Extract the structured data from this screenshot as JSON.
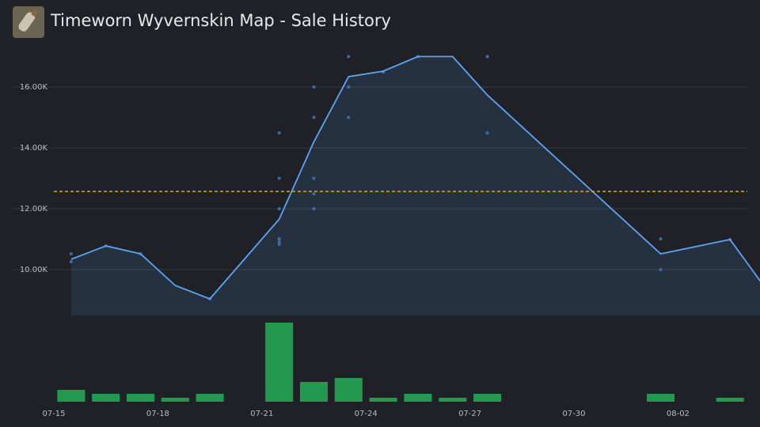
{
  "chart_data": {
    "type": "line",
    "title": "Timeworn Wyvernskin Map - Sale History",
    "x": [
      "07-15",
      "07-16",
      "07-17",
      "07-18",
      "07-19",
      "07-21",
      "07-22",
      "07-23",
      "07-24",
      "07-25",
      "07-26",
      "07-27",
      "08-01",
      "08-03",
      "08-04"
    ],
    "series": [
      {
        "color": "#5ca3f5",
        "values": [
          10340,
          10780,
          10520,
          9480,
          9040,
          11660,
          14200,
          16340,
          16520,
          17000,
          17000,
          15740,
          10520,
          10990,
          9430
        ]
      }
    ],
    "volume": {
      "color": "#23994f",
      "values": [
        3,
        2,
        2,
        1,
        2,
        20,
        5,
        6,
        1,
        2,
        1,
        2,
        2,
        1,
        0
      ],
      "ylim": [
        0,
        20
      ]
    },
    "sales": {
      "color": "#3d6aa8",
      "x": [
        "07-15",
        "07-15",
        "07-16",
        "07-17",
        "07-19",
        "07-21",
        "07-21",
        "07-21",
        "07-21",
        "07-21",
        "07-21",
        "07-22",
        "07-22",
        "07-22",
        "07-22",
        "07-22",
        "07-23",
        "07-23",
        "07-23",
        "07-23",
        "07-24",
        "07-25",
        "07-25",
        "07-27",
        "07-27",
        "07-27",
        "08-01",
        "08-01",
        "08-03"
      ],
      "values": [
        10520,
        10260,
        10780,
        10520,
        9040,
        12000,
        11010,
        10910,
        10830,
        14490,
        13000,
        12490,
        12000,
        13000,
        15000,
        16000,
        16000,
        16000,
        15000,
        17000,
        16490,
        17000,
        17000,
        17000,
        17000,
        14490,
        11010,
        10000,
        10990
      ]
    },
    "reference_line": {
      "value": 12570,
      "color": "#e0a526"
    },
    "xlim": [
      "07-15",
      "08-04"
    ],
    "xticks": [
      "07-15",
      "07-18",
      "07-21",
      "07-24",
      "07-27",
      "07-30",
      "08-02"
    ],
    "ylim": [
      8500,
      17300
    ],
    "yticks": [
      {
        "value": 10000,
        "label": "10.00K"
      },
      {
        "value": 12000,
        "label": "12.00K"
      },
      {
        "value": 14000,
        "label": "14.00K"
      },
      {
        "value": 16000,
        "label": "16.00K"
      }
    ],
    "grid": true
  }
}
